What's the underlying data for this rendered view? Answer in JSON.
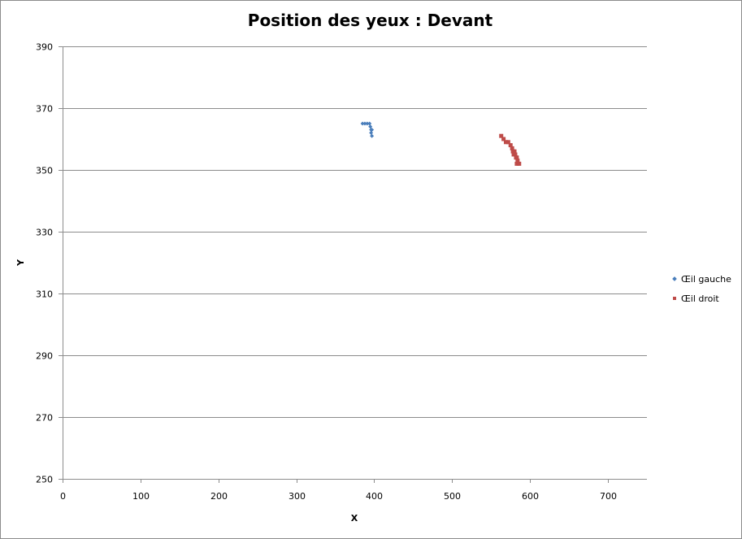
{
  "chart_data": {
    "type": "scatter",
    "title": "Position des yeux : Devant",
    "xlabel": "X",
    "ylabel": "Y",
    "xlim": [
      0,
      750
    ],
    "ylim": [
      250,
      390
    ],
    "x_ticks": [
      0,
      100,
      200,
      300,
      400,
      500,
      600,
      700
    ],
    "y_ticks": [
      250,
      270,
      290,
      310,
      330,
      350,
      370,
      390
    ],
    "grid": "horizontal",
    "legend_position": "right",
    "series": [
      {
        "name": "Œil gauche",
        "color": "#4a7ebb",
        "marker": "diamond",
        "points": [
          [
            385,
            365
          ],
          [
            388,
            365
          ],
          [
            391,
            365
          ],
          [
            394,
            365
          ],
          [
            395,
            364
          ],
          [
            396,
            363
          ],
          [
            397,
            363
          ],
          [
            396,
            362
          ],
          [
            397,
            361
          ]
        ]
      },
      {
        "name": "Œil droit",
        "color": "#be4b48",
        "marker": "square",
        "points": [
          [
            563,
            361
          ],
          [
            566,
            360
          ],
          [
            569,
            359
          ],
          [
            572,
            359
          ],
          [
            575,
            358
          ],
          [
            577,
            357
          ],
          [
            578,
            356
          ],
          [
            580,
            356
          ],
          [
            579,
            355
          ],
          [
            581,
            355
          ],
          [
            582,
            354
          ],
          [
            583,
            354
          ],
          [
            584,
            353
          ],
          [
            583,
            352
          ],
          [
            586,
            352
          ]
        ]
      }
    ]
  }
}
